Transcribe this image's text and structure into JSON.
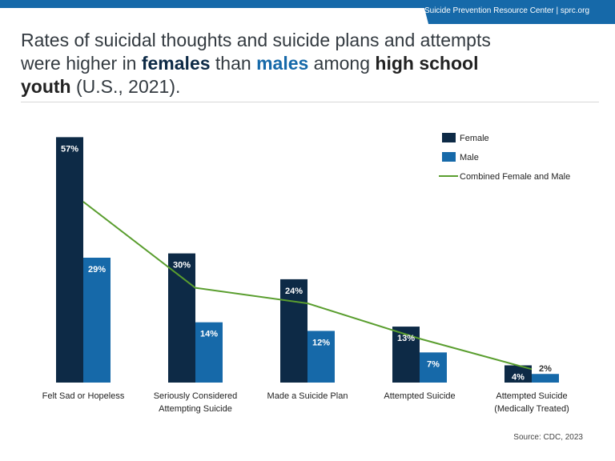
{
  "header": {
    "org": "Suicide Prevention Resource Center  |  sprc.org"
  },
  "title": {
    "part1": "Rates of suicidal thoughts and suicide plans and attempts were higher in ",
    "females": "females",
    "part2": " than ",
    "males": "males",
    "part3": " among ",
    "highschool": "high school youth",
    "part4": " (U.S., 2021)."
  },
  "source": "Source: CDC, 2023",
  "colors": {
    "female": "#0d2a46",
    "male": "#1669a9",
    "combined": "#5a9e2f",
    "accent": "#1669a9"
  },
  "chart_data": {
    "type": "bar",
    "title": "Rates of suicidal thoughts and suicide plans and attempts were higher in females than males among high school youth (U.S., 2021).",
    "categories": [
      [
        "Felt Sad or Hopeless"
      ],
      [
        "Seriously Considered",
        "Attempting Suicide"
      ],
      [
        "Made a Suicide Plan"
      ],
      [
        "Attempted Suicide"
      ],
      [
        "Attempted Suicide",
        "(Medically Treated)"
      ]
    ],
    "series": [
      {
        "name": "Female",
        "type": "bar",
        "values": [
          57,
          30,
          24,
          13,
          4
        ],
        "labels": [
          "57%",
          "30%",
          "24%",
          "13%",
          "4%"
        ]
      },
      {
        "name": "Male",
        "type": "bar",
        "values": [
          29,
          14,
          12,
          7,
          2
        ],
        "labels": [
          "29%",
          "14%",
          "12%",
          "7%",
          "2%"
        ]
      },
      {
        "name": "Combined Female and Male",
        "type": "line",
        "values": [
          42,
          22,
          18.4,
          10.2,
          3.1
        ]
      }
    ],
    "ylim": [
      0,
      58
    ],
    "xlabel": "",
    "ylabel": "",
    "grid": false,
    "legend": "top-right"
  }
}
